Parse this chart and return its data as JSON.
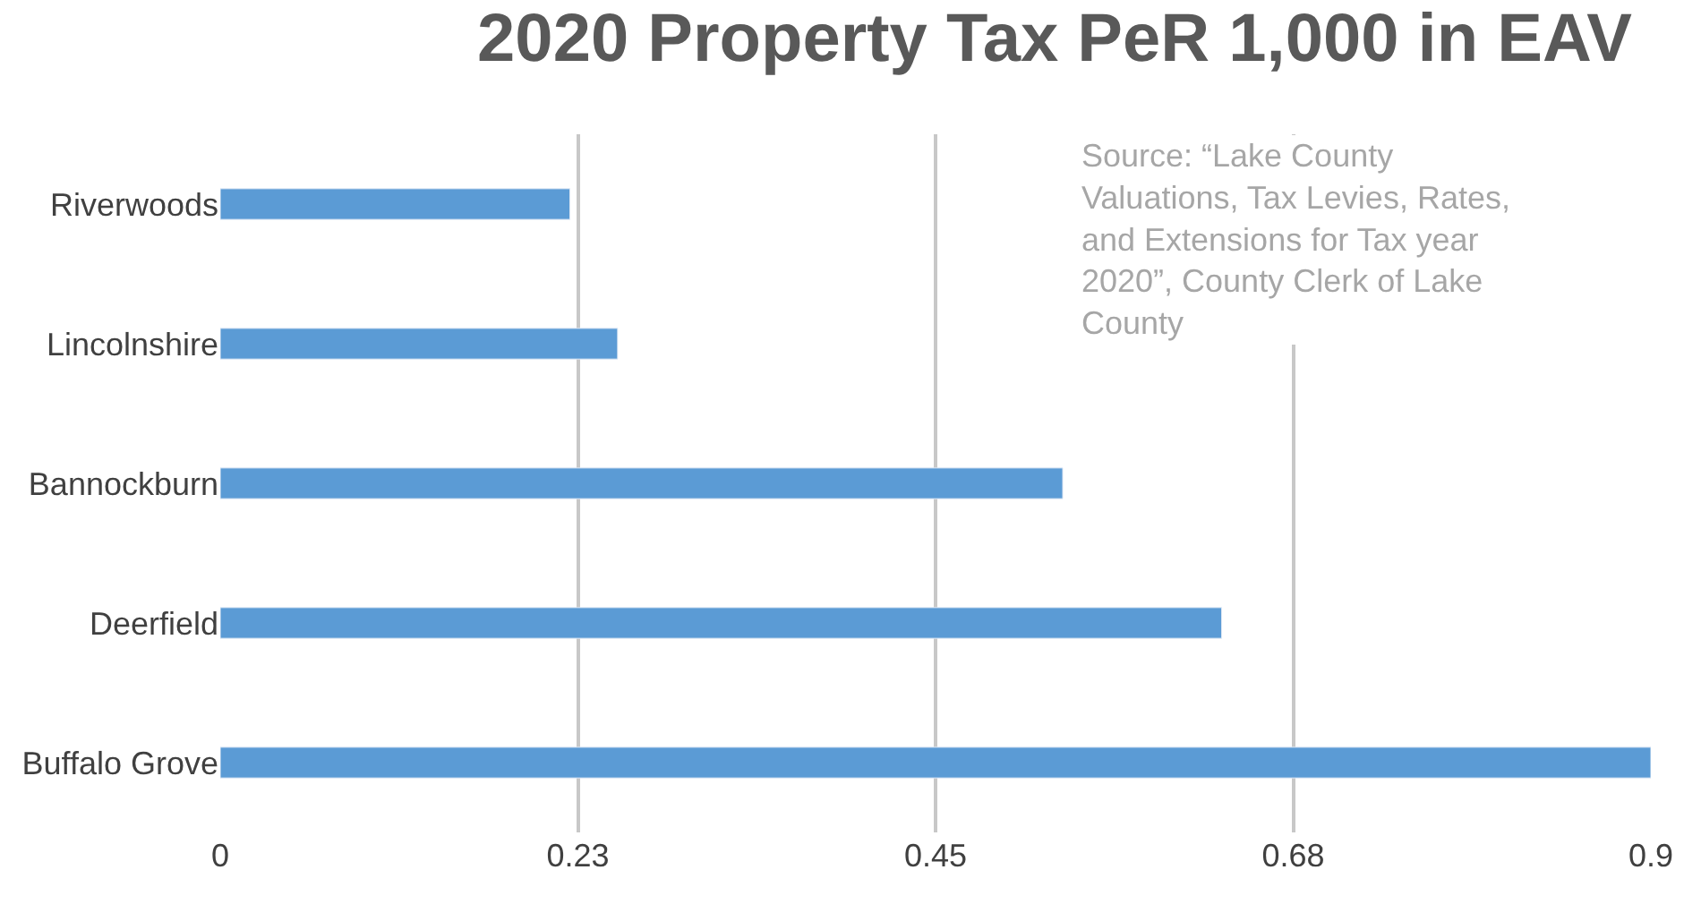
{
  "chart_data": {
    "type": "bar",
    "orientation": "horizontal",
    "title": "2020 Property Tax PeR 1,000 in EAV",
    "categories": [
      "Riverwoods",
      "Lincolnshire",
      "Bannockburn",
      "Deerfield",
      "Buffalo Grove"
    ],
    "values": [
      0.22,
      0.25,
      0.53,
      0.63,
      0.9
    ],
    "color": "#5b9bd5",
    "xlim": [
      0,
      0.9
    ],
    "xticks": [
      0,
      {
        "value": 0.225,
        "label": "0.23"
      },
      0.45,
      {
        "value": 0.675,
        "label": "0.68"
      },
      0.9
    ],
    "grid": "x",
    "legend": false,
    "annotations": [
      "Source: “Lake County Valuations, Tax Levies, Rates, and Extensions for Tax year 2020”, County Clerk of Lake County"
    ]
  }
}
